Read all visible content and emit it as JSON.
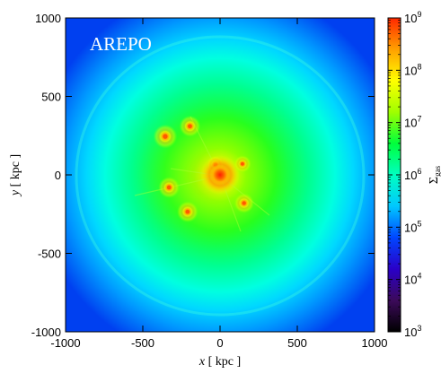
{
  "chart_data": {
    "type": "heatmap",
    "title": "",
    "annotation": "AREPO",
    "xlabel_var": "x",
    "xlabel_unit": "[ kpc ]",
    "ylabel_var": "y",
    "ylabel_unit": "[ kpc ]",
    "xlim": [
      -1000,
      1000
    ],
    "ylim": [
      -1000,
      1000
    ],
    "x_ticks": [
      -1000,
      -500,
      0,
      500,
      1000
    ],
    "y_ticks": [
      -1000,
      -500,
      0,
      500,
      1000
    ],
    "colorbar": {
      "label_symbol": "Σ",
      "label_sub": "gas",
      "scale": "log",
      "range": [
        1000,
        1000000000
      ],
      "tick_base": "10",
      "tick_exponents": [
        "3",
        "4",
        "5",
        "6",
        "7",
        "8",
        "9"
      ],
      "colormap": [
        "#000000",
        "#3c0a5a",
        "#2a00c8",
        "#0046ff",
        "#00c8ff",
        "#00ffc0",
        "#00ff3c",
        "#a0ff00",
        "#ffff00",
        "#ffa000",
        "#ff2800"
      ]
    },
    "field": {
      "center_x": 0,
      "center_y": 0,
      "background_log_sigma": 4.2,
      "core_log_sigma": 8.4,
      "subhalos": [
        {
          "x": -355,
          "y": 245,
          "log_sigma": 8.1
        },
        {
          "x": -195,
          "y": 310,
          "log_sigma": 7.9
        },
        {
          "x": -330,
          "y": -80,
          "log_sigma": 7.9
        },
        {
          "x": -210,
          "y": -235,
          "log_sigma": 7.9
        },
        {
          "x": 155,
          "y": -180,
          "log_sigma": 7.8
        },
        {
          "x": 145,
          "y": 70,
          "log_sigma": 7.6
        },
        {
          "x": -30,
          "y": 65,
          "log_sigma": 7.7
        }
      ]
    }
  }
}
